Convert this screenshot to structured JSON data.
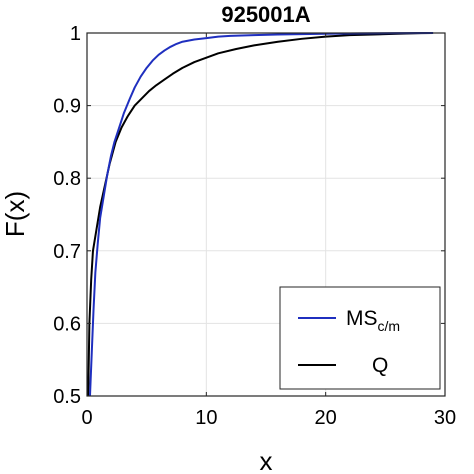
{
  "chart_data": {
    "type": "line",
    "title": "925001A",
    "xlabel": "x",
    "ylabel": "F(x)",
    "xlim": [
      0,
      30
    ],
    "ylim": [
      0.5,
      1
    ],
    "xticks": [
      0,
      10,
      20,
      30
    ],
    "yticks": [
      0.5,
      0.6,
      0.7,
      0.8,
      0.9,
      1
    ],
    "xtick_labels": [
      "0",
      "10",
      "20",
      "30"
    ],
    "ytick_labels": [
      "0.5",
      "0.6",
      "0.7",
      "0.8",
      "0.9",
      "1"
    ],
    "grid": true,
    "legend_position": "bottom-right",
    "series": [
      {
        "name": "MS",
        "name_subscript": "c/m",
        "color": "#1f2fbf",
        "x": [
          0.25,
          0.4,
          0.55,
          0.7,
          0.9,
          1.1,
          1.4,
          1.7,
          2.0,
          2.3,
          2.7,
          3.1,
          3.6,
          4.0,
          4.5,
          5.0,
          5.5,
          6.0,
          6.5,
          7.0,
          7.5,
          8.0,
          9.0,
          10.0,
          11.0,
          12.0,
          14.0,
          16.0,
          18.0,
          20.0,
          23.0,
          26.0,
          29.0
        ],
        "y": [
          0.5,
          0.56,
          0.62,
          0.67,
          0.71,
          0.745,
          0.775,
          0.805,
          0.83,
          0.85,
          0.87,
          0.89,
          0.91,
          0.925,
          0.94,
          0.952,
          0.962,
          0.97,
          0.976,
          0.981,
          0.985,
          0.988,
          0.991,
          0.993,
          0.995,
          0.996,
          0.997,
          0.998,
          0.9985,
          0.999,
          0.9995,
          0.9998,
          1.0
        ]
      },
      {
        "name": "Q",
        "color": "#000000",
        "x": [
          0.1,
          0.2,
          0.35,
          0.5,
          0.8,
          1.1,
          1.5,
          1.9,
          2.4,
          2.9,
          3.4,
          4.0,
          4.6,
          5.2,
          5.8,
          6.5,
          7.2,
          8.0,
          9.0,
          10.0,
          11.0,
          12.5,
          14.0,
          16.0,
          18.0,
          20.0,
          22.0,
          24.0,
          26.0,
          28.0,
          29.0
        ],
        "y": [
          0.5,
          0.6,
          0.66,
          0.7,
          0.73,
          0.76,
          0.79,
          0.82,
          0.85,
          0.87,
          0.885,
          0.9,
          0.91,
          0.92,
          0.928,
          0.936,
          0.944,
          0.952,
          0.96,
          0.966,
          0.972,
          0.978,
          0.983,
          0.988,
          0.992,
          0.995,
          0.997,
          0.998,
          0.999,
          0.9998,
          1.0
        ]
      }
    ]
  }
}
